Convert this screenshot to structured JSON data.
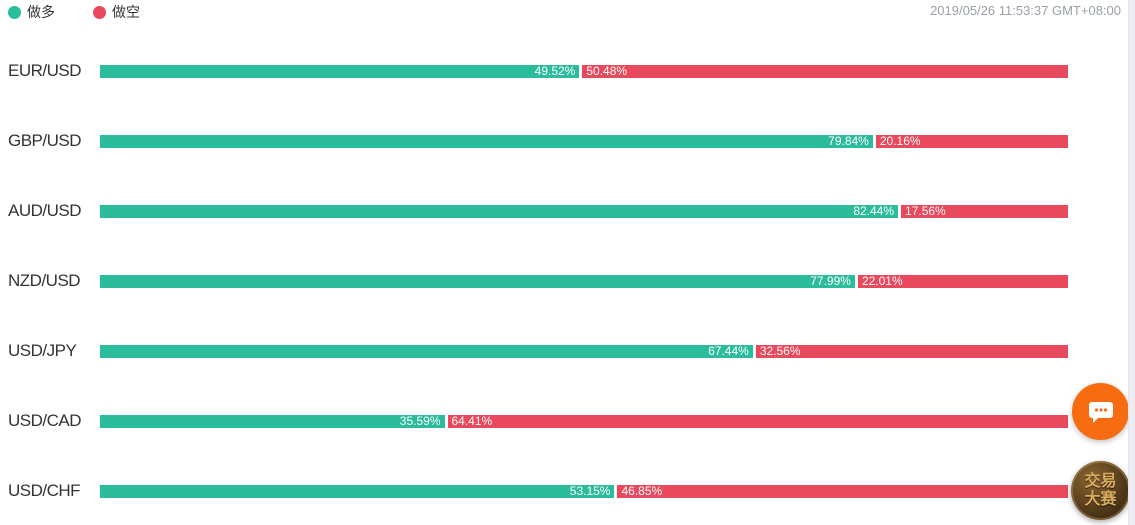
{
  "legend": {
    "items": [
      {
        "label": "做多",
        "color": "#2bbc9b"
      },
      {
        "label": "做空",
        "color": "#e8495d"
      }
    ]
  },
  "timestamp": "2019/05/26 11:53:37 GMT+08:00",
  "chart_data": {
    "type": "bar",
    "orientation": "horizontal",
    "stacked": true,
    "unit": "%",
    "axis_range": [
      0,
      100
    ],
    "grid": false,
    "legend_position": "top-left",
    "categories": [
      "EUR/USD",
      "GBP/USD",
      "AUD/USD",
      "NZD/USD",
      "USD/JPY",
      "USD/CAD",
      "USD/CHF"
    ],
    "series": [
      {
        "name": "做多",
        "color": "#2bbc9b",
        "values": [
          49.52,
          79.84,
          82.44,
          77.99,
          67.44,
          35.59,
          53.15
        ]
      },
      {
        "name": "做空",
        "color": "#e8495d",
        "values": [
          50.48,
          20.16,
          17.56,
          22.01,
          32.56,
          64.41,
          46.85
        ]
      }
    ]
  },
  "floating": {
    "chat_icon": "speech-bubble-icon",
    "chat_color": "#f86c11",
    "badge_line1": "交易",
    "badge_line2": "大赛"
  }
}
